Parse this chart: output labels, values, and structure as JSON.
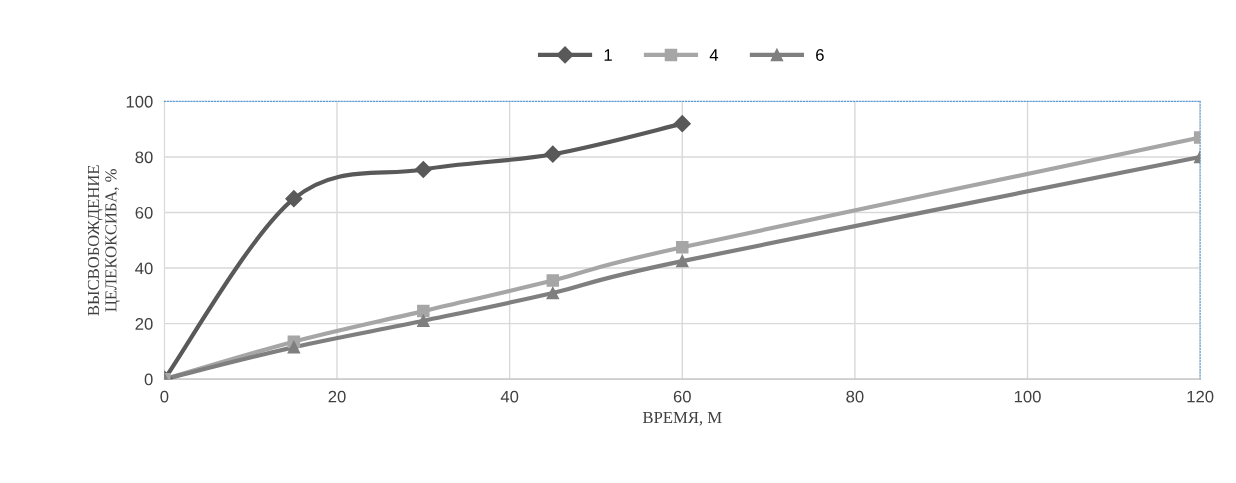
{
  "chart_data": {
    "type": "line",
    "xlabel": "ВРЕМЯ, М",
    "ylabel": "ВЫСВОБОЖДЕНИЕ\nЦЕЛЕКОКСИБА, %",
    "series": [
      {
        "name": "1",
        "color": "#595959",
        "marker": "diamond",
        "x": [
          0,
          15,
          30,
          45,
          60
        ],
        "values": [
          0,
          65,
          75.5,
          81,
          92
        ]
      },
      {
        "name": "4",
        "color": "#a6a6a6",
        "marker": "square",
        "x": [
          0,
          15,
          30,
          45,
          60,
          120
        ],
        "values": [
          0,
          13.5,
          24.5,
          35.5,
          47.5,
          87
        ]
      },
      {
        "name": "6",
        "color": "#7f7f7f",
        "marker": "triangle",
        "x": [
          0,
          15,
          30,
          45,
          60,
          120
        ],
        "values": [
          0,
          11.5,
          21,
          31,
          42.5,
          80
        ]
      }
    ],
    "xlim": [
      0,
      120
    ],
    "xticks": [
      0,
      20,
      40,
      60,
      80,
      100,
      120
    ],
    "ylim": [
      0,
      100
    ],
    "yticks": [
      0,
      20,
      40,
      60,
      80,
      100
    ],
    "grid": true,
    "legend": "top",
    "line_style": "solid"
  }
}
